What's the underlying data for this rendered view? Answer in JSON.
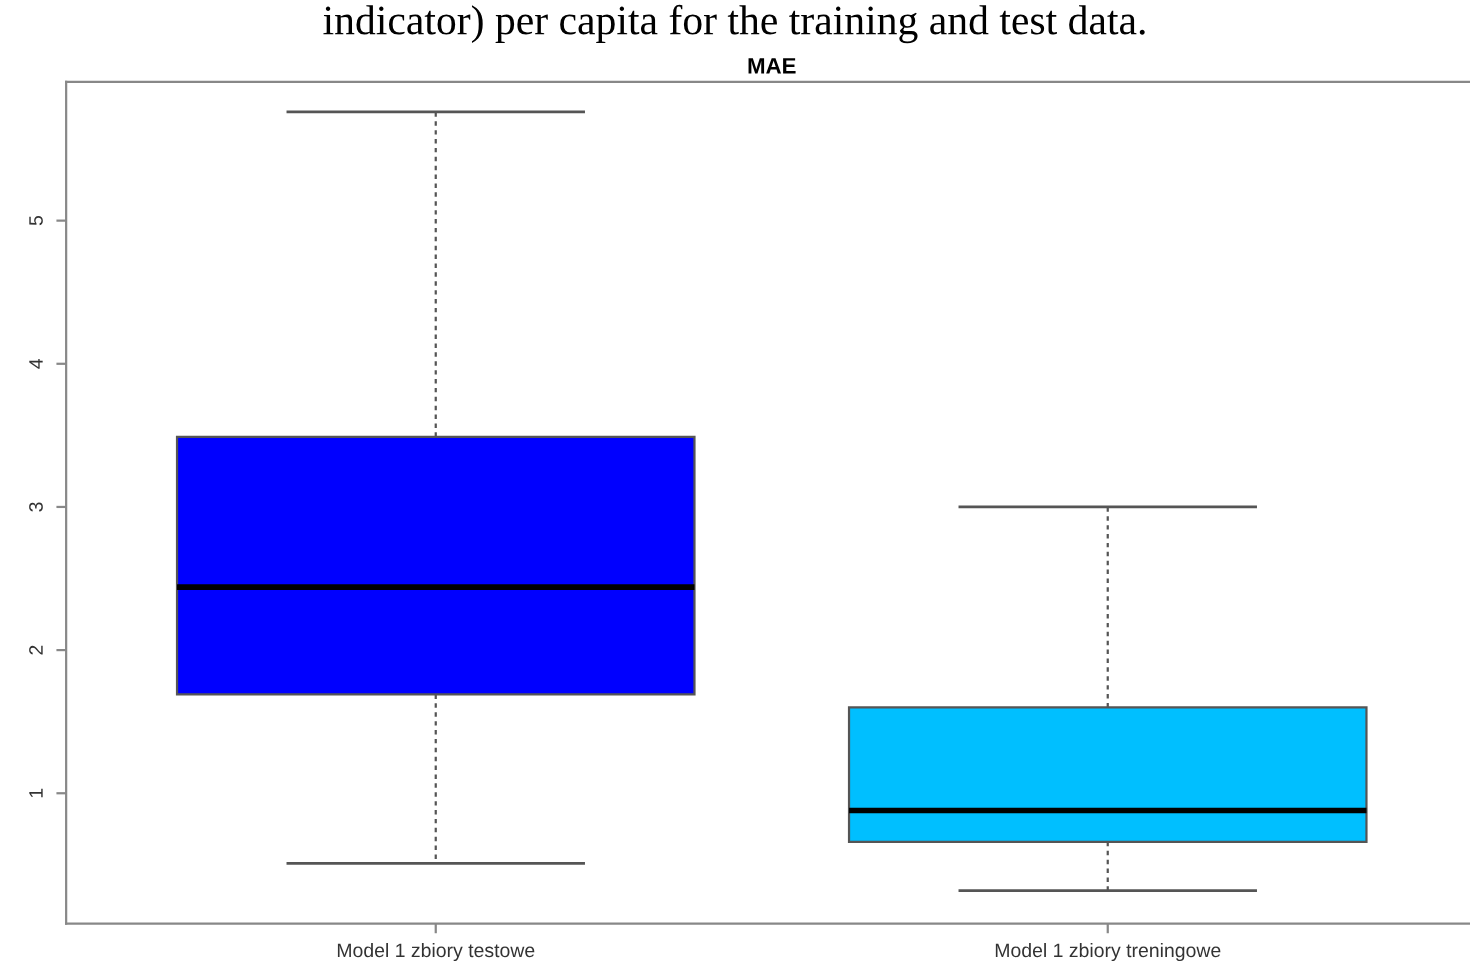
{
  "chart_data": {
    "type": "box",
    "title": "MAE",
    "annotations": [
      "indicator) per capita for the training and test data."
    ],
    "categories": [
      "Model 1 zbiory testowe",
      "Model 1 zbiory treningowe"
    ],
    "colors": [
      "#0000ff",
      "#00bfff"
    ],
    "boxes": [
      {
        "low": 0.51,
        "q1": 1.69,
        "median": 2.44,
        "q3": 3.49,
        "high": 5.76
      },
      {
        "low": 0.32,
        "q1": 0.66,
        "median": 0.88,
        "q3": 1.6,
        "high": 3.0
      }
    ],
    "ylim": [
      0.09,
      5.97
    ],
    "yticks": [
      1,
      2,
      3,
      4,
      5
    ],
    "grid": false
  }
}
